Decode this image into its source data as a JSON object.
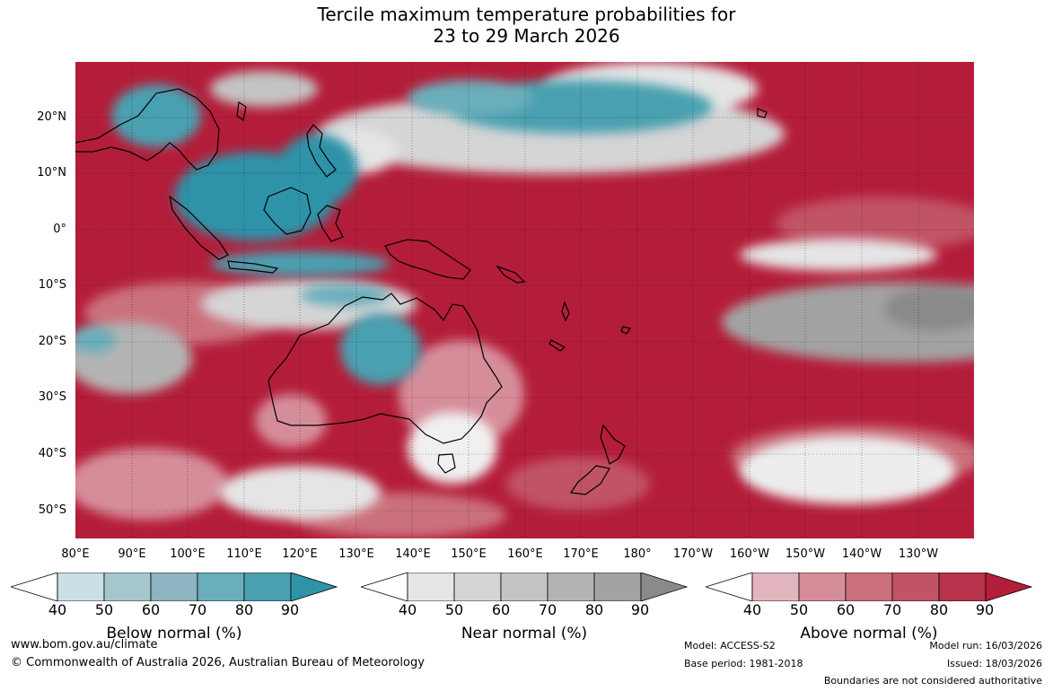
{
  "title": {
    "line1": "Tercile maximum temperature probabilities for",
    "line2": "23 to 29 March 2026"
  },
  "map": {
    "lat_labels": [
      "20°N",
      "10°N",
      "0°",
      "10°S",
      "20°S",
      "30°S",
      "40°S",
      "50°S"
    ],
    "lon_labels": [
      "80°E",
      "90°E",
      "100°E",
      "110°E",
      "120°E",
      "130°E",
      "140°E",
      "150°E",
      "160°E",
      "170°E",
      "180°",
      "170°W",
      "160°W",
      "150°W",
      "140°W",
      "130°W"
    ],
    "colors": {
      "above_dominant": "#b41d39",
      "near_dominant": "#c8c8c8",
      "below_dominant": "#2f93a8",
      "coastline": "#000000"
    }
  },
  "legend": {
    "below": {
      "title": "Below normal (%)",
      "ticks": [
        "40",
        "50",
        "60",
        "70",
        "80",
        "90"
      ],
      "colors": [
        "#ffffff",
        "#c9e0e6",
        "#a5c7cc",
        "#8cb4c1",
        "#6aaebb",
        "#4aa0b0",
        "#2f93a8"
      ]
    },
    "near": {
      "title": "Near normal (%)",
      "ticks": [
        "40",
        "50",
        "60",
        "70",
        "80",
        "90"
      ],
      "colors": [
        "#ffffff",
        "#e5e5e5",
        "#d5d5d5",
        "#c4c4c4",
        "#b4b4b4",
        "#a3a3a3",
        "#8a8a8a"
      ]
    },
    "above": {
      "title": "Above normal (%)",
      "ticks": [
        "40",
        "50",
        "60",
        "70",
        "80",
        "90"
      ],
      "colors": [
        "#ffffff",
        "#e2b5bf",
        "#d68d9a",
        "#cb717e",
        "#c15366",
        "#b7334b",
        "#b41d39"
      ]
    }
  },
  "footer": {
    "website": "www.bom.gov.au/climate",
    "copyright": "© Commonwealth of Australia 2026, Australian Bureau of Meteorology",
    "model": "Model: ACCESS-S2",
    "base_period": "Base period: 1981-2018",
    "model_run": "Model run: 16/03/2026",
    "issued": "Issued: 18/03/2026",
    "disclaimer": "Boundaries are not considered authoritative"
  }
}
